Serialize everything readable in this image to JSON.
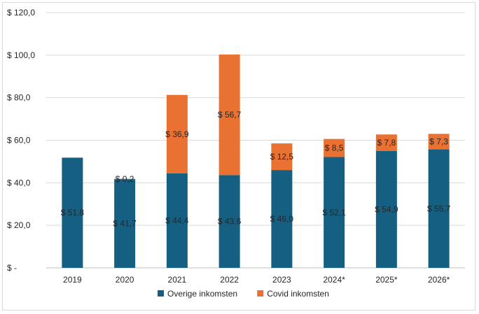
{
  "chart_data": {
    "type": "bar",
    "stacked": true,
    "categories": [
      "2019",
      "2020",
      "2021",
      "2022",
      "2023",
      "2024*",
      "2025*",
      "2026*"
    ],
    "series": [
      {
        "name": "Overige inkomsten",
        "color": "#156082",
        "values": [
          51.8,
          41.7,
          44.4,
          43.6,
          46.0,
          52.1,
          54.9,
          55.7
        ],
        "labels": [
          "$ 51,8",
          "$ 41,7",
          "$ 44,4",
          "$ 43,6",
          "$ 46,0",
          "$ 52,1",
          "$ 54,9",
          "$ 55,7"
        ]
      },
      {
        "name": "Covid inkomsten",
        "color": "#E97132",
        "values": [
          0,
          0.2,
          36.9,
          56.7,
          12.5,
          8.5,
          7.8,
          7.3
        ],
        "labels": [
          "",
          "$ 0,2",
          "$ 36,9",
          "$ 56,7",
          "$ 12,5",
          "$ 8,5",
          "$ 7,8",
          "$ 7,3"
        ]
      }
    ],
    "ylim": [
      0,
      120
    ],
    "yticks": [
      0,
      20,
      40,
      60,
      80,
      100,
      120
    ],
    "ytick_labels": [
      "$ -",
      "$ 20,0",
      "$ 40,0",
      "$ 60,0",
      "$ 80,0",
      "$ 100,0",
      "$ 120,0"
    ],
    "grid": true,
    "legend_position": "bottom"
  }
}
